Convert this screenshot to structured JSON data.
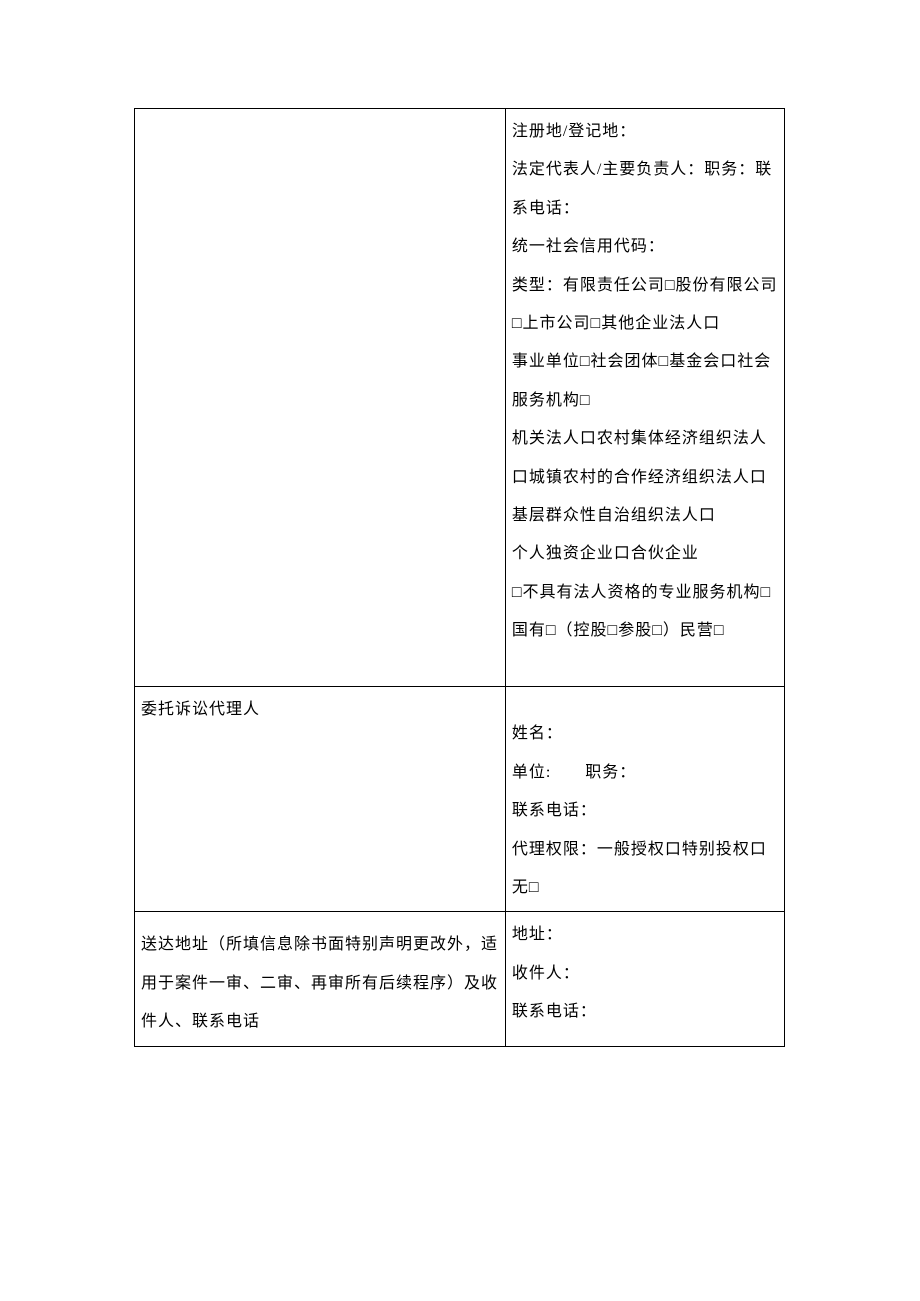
{
  "table": {
    "row1": {
      "left": "",
      "right_lines": [
        "注册地/登记地：",
        "法定代表人/主要负责人：职务：联系电话：",
        "统一社会信用代码：",
        "类型：有限责任公司□股份有限公司□上市公司□其他企业法人口",
        "事业单位□社会团体□基金会口社会服务机构□",
        "机关法人口农村集体经济组织法人口城镇农村的合作经济组织法人口基层群众性自治组织法人口",
        "个人独资企业口合伙企业",
        "□不具有法人资格的专业服务机构□",
        "国有□（控股□参股□）民营□"
      ]
    },
    "row2": {
      "left": "委托诉讼代理人",
      "right_lines": [
        "姓名：",
        "单位:　　职务：",
        "联系电话：",
        "代理权限：一般授权口特别投权口",
        "无□"
      ]
    },
    "row3": {
      "left": "送达地址（所填信息除书面特别声明更改外，适用于案件一审、二审、再审所有后续程序）及收件人、联系电话",
      "right_lines": [
        "地址：",
        "收件人：",
        "联系电话："
      ]
    }
  },
  "colors": {
    "background": "#ffffff",
    "text": "#000000",
    "border": "#000000"
  },
  "typography": {
    "font_family": "SimSun",
    "font_size_pt": 12,
    "line_height": 2.4
  }
}
